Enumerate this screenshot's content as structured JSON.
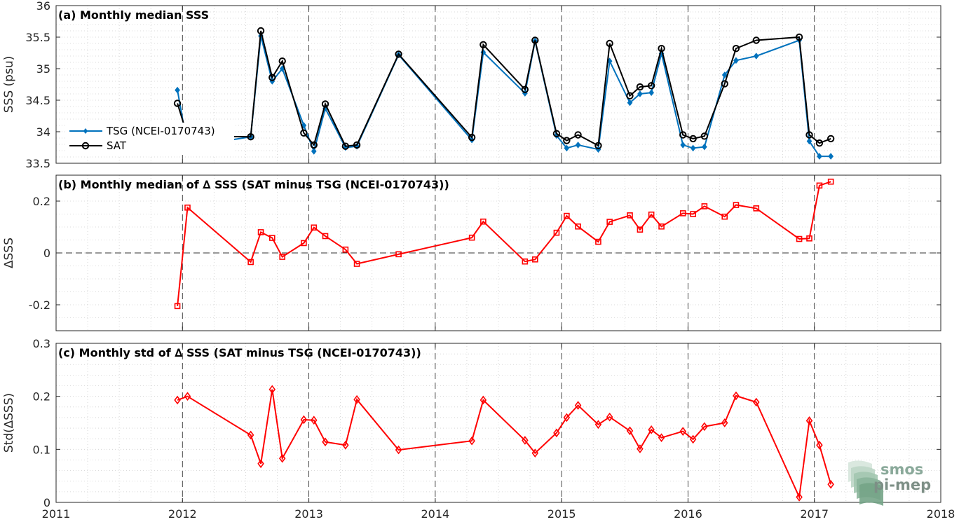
{
  "chart_data": [
    {
      "type": "line",
      "title": "(a) Monthly median SSS",
      "xlabel": "",
      "ylabel": "SSS (psu)",
      "xlim": [
        2011,
        2018
      ],
      "ylim": [
        33.5,
        36
      ],
      "xticks": [
        "2011",
        "2012",
        "2013",
        "2014",
        "2015",
        "2016",
        "2017",
        "2018"
      ],
      "yticks": [
        "33.5",
        "34",
        "34.5",
        "35",
        "35.5",
        "36"
      ],
      "grid": "dotted",
      "legend_position": "left",
      "series": [
        {
          "name": "TSG (NCEI-0170743)",
          "color": "#0072bd",
          "marker": "diamond",
          "x": [
            2011.96,
            2012.04,
            2012.54,
            2012.62,
            2012.71,
            2012.79,
            2012.96,
            2013.04,
            2013.13,
            2013.29,
            2013.38,
            2013.71,
            2014.29,
            2014.38,
            2014.71,
            2014.79,
            2014.96,
            2015.04,
            2015.13,
            2015.29,
            2015.38,
            2015.54,
            2015.62,
            2015.71,
            2015.79,
            2015.96,
            2016.04,
            2016.13,
            2016.29,
            2016.38,
            2016.54,
            2016.88,
            2016.96,
            2017.04,
            2017.13
          ],
          "y": [
            34.66,
            33.76,
            33.92,
            35.52,
            34.8,
            35.0,
            34.1,
            33.69,
            34.37,
            33.75,
            33.77,
            35.22,
            33.87,
            35.26,
            34.61,
            35.44,
            33.94,
            33.74,
            33.79,
            33.72,
            35.12,
            34.46,
            34.6,
            34.62,
            35.24,
            33.79,
            33.74,
            33.76,
            34.9,
            35.13,
            35.2,
            35.45,
            33.85,
            33.61,
            33.61
          ]
        },
        {
          "name": "SAT",
          "color": "#000000",
          "marker": "circle",
          "x": [
            2011.96,
            2012.04,
            2012.54,
            2012.62,
            2012.71,
            2012.79,
            2012.96,
            2013.04,
            2013.13,
            2013.29,
            2013.38,
            2013.71,
            2014.29,
            2014.38,
            2014.71,
            2014.79,
            2014.96,
            2015.04,
            2015.13,
            2015.29,
            2015.38,
            2015.54,
            2015.62,
            2015.71,
            2015.79,
            2015.96,
            2016.04,
            2016.13,
            2016.29,
            2016.38,
            2016.54,
            2016.88,
            2016.96,
            2017.04,
            2017.13
          ],
          "y": [
            34.45,
            33.93,
            33.92,
            35.6,
            34.86,
            35.12,
            33.98,
            33.79,
            34.44,
            33.77,
            33.79,
            35.23,
            33.91,
            35.38,
            34.67,
            35.45,
            33.97,
            33.86,
            33.95,
            33.78,
            35.4,
            34.57,
            34.71,
            34.73,
            35.32,
            33.95,
            33.89,
            33.93,
            34.76,
            35.32,
            35.45,
            35.5,
            33.95,
            33.82,
            33.89
          ]
        }
      ]
    },
    {
      "type": "line",
      "title": "(b) Monthly median of ∆ SSS (SAT minus TSG (NCEI-0170743))",
      "xlabel": "",
      "ylabel": "∆SSS",
      "xlim": [
        2011,
        2018
      ],
      "ylim": [
        -0.3,
        0.3
      ],
      "yticks": [
        "-0.2",
        "0",
        "0.2"
      ],
      "grid": "dotted",
      "zero_line": "dashed",
      "series": [
        {
          "name": "",
          "color": "#ff0000",
          "marker": "square",
          "x": [
            2011.96,
            2012.04,
            2012.54,
            2012.62,
            2012.71,
            2012.79,
            2012.96,
            2013.04,
            2013.13,
            2013.29,
            2013.38,
            2013.71,
            2014.29,
            2014.38,
            2014.71,
            2014.79,
            2014.96,
            2015.04,
            2015.13,
            2015.29,
            2015.38,
            2015.54,
            2015.62,
            2015.71,
            2015.79,
            2015.96,
            2016.04,
            2016.13,
            2016.29,
            2016.38,
            2016.54,
            2016.88,
            2016.96,
            2017.04,
            2017.13
          ],
          "y": [
            -0.205,
            0.175,
            -0.035,
            0.08,
            0.058,
            -0.015,
            0.038,
            0.098,
            0.065,
            0.013,
            -0.042,
            -0.005,
            0.059,
            0.121,
            -0.033,
            -0.025,
            0.078,
            0.143,
            0.102,
            0.043,
            0.12,
            0.145,
            0.09,
            0.148,
            0.102,
            0.153,
            0.15,
            0.18,
            0.14,
            0.185,
            0.172,
            0.054,
            0.056,
            0.26,
            0.275
          ]
        }
      ]
    },
    {
      "type": "line",
      "title": "(c) Monthly std of ∆ SSS (SAT minus TSG (NCEI-0170743))",
      "xlabel": "",
      "ylabel": "Std(∆SSS)",
      "xlim": [
        2011,
        2018
      ],
      "ylim": [
        0,
        0.3
      ],
      "yticks": [
        "0",
        "0.1",
        "0.2",
        "0.3"
      ],
      "grid": "dotted",
      "series": [
        {
          "name": "",
          "color": "#ff0000",
          "marker": "diamond",
          "x": [
            2011.96,
            2012.04,
            2012.54,
            2012.62,
            2012.71,
            2012.79,
            2012.96,
            2013.04,
            2013.13,
            2013.29,
            2013.38,
            2013.71,
            2014.29,
            2014.38,
            2014.71,
            2014.79,
            2014.96,
            2015.04,
            2015.13,
            2015.29,
            2015.38,
            2015.54,
            2015.62,
            2015.71,
            2015.79,
            2015.96,
            2016.04,
            2016.13,
            2016.29,
            2016.38,
            2016.54,
            2016.88,
            2016.96,
            2017.04,
            2017.13
          ],
          "y": [
            0.193,
            0.2,
            0.127,
            0.073,
            0.213,
            0.083,
            0.156,
            0.155,
            0.114,
            0.108,
            0.194,
            0.099,
            0.116,
            0.193,
            0.117,
            0.093,
            0.131,
            0.16,
            0.183,
            0.147,
            0.161,
            0.135,
            0.101,
            0.137,
            0.122,
            0.134,
            0.119,
            0.143,
            0.15,
            0.201,
            0.189,
            0.01,
            0.154,
            0.108,
            0.034
          ]
        }
      ]
    }
  ],
  "logo": {
    "line1": "smos",
    "line2": "pi-mep",
    "color": "#8aa99a"
  }
}
